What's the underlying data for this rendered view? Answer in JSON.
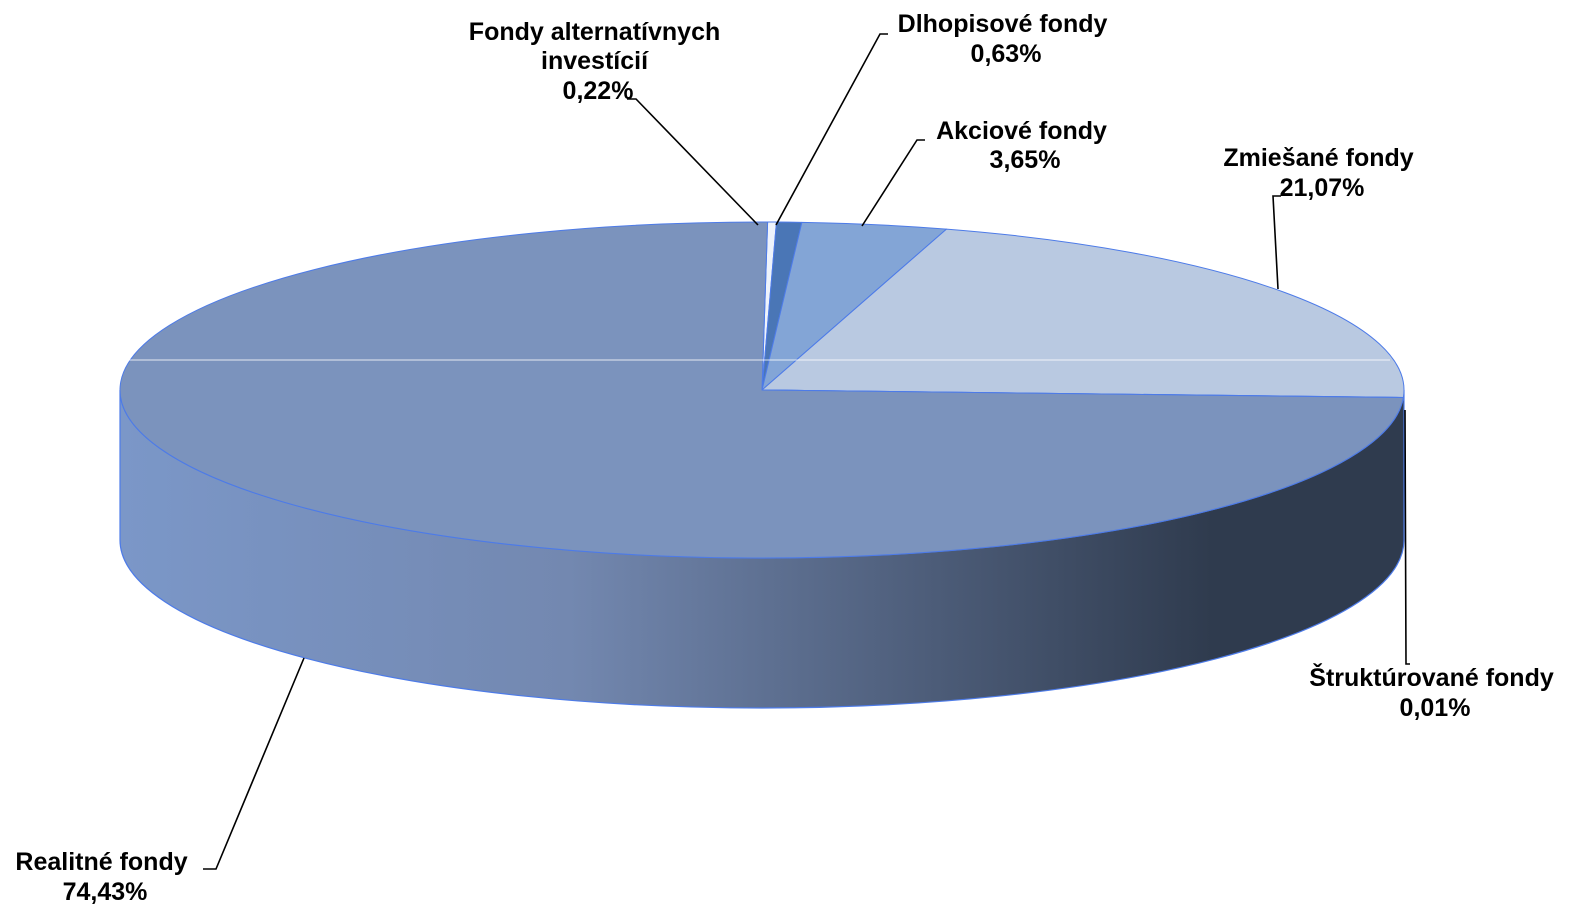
{
  "chart_data": {
    "type": "pie",
    "variant": "3d",
    "slices": [
      {
        "label": "Fondy alternatívnych investícií",
        "value_label": "0,22%",
        "value": 0.22,
        "color": "#eef3fb"
      },
      {
        "label": "Dlhopisové fondy",
        "value_label": "0,63%",
        "value": 0.63,
        "color": "#4a76b6"
      },
      {
        "label": "Akciové fondy",
        "value_label": "3,65%",
        "value": 3.65,
        "color": "#83a5d6"
      },
      {
        "label": "Zmiešané fondy",
        "value_label": "21,07%",
        "value": 21.07,
        "color": "#b9c9e1"
      },
      {
        "label": "Štruktúrované fondy",
        "value_label": "0,01%",
        "value": 0.01,
        "color": "#7b93bd"
      },
      {
        "label": "Realitné fondy",
        "value_label": "74,43%",
        "value": 74.43,
        "color": "#7b93bd"
      }
    ],
    "side_gradient": [
      "#7b97c8",
      "#2f3b4e"
    ],
    "edge_color": "#4d7be8",
    "legend": "none"
  }
}
